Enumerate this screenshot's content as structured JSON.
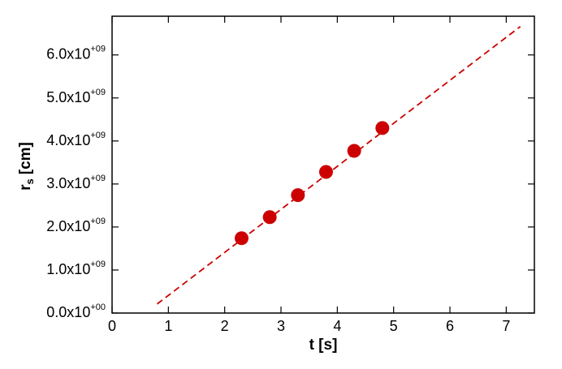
{
  "chart_data": {
    "type": "scatter",
    "x_label": "t [s]",
    "y_label": {
      "main": "r",
      "sub": "s",
      "unit": "[cm]"
    },
    "xlim": [
      0,
      7.5
    ],
    "xticks": [
      0,
      1,
      2,
      3,
      4,
      5,
      6,
      7
    ],
    "ylim": [
      0,
      6900000000
    ],
    "yticks": [
      {
        "value": 0,
        "label": "0.0x10",
        "exponent": "+00"
      },
      {
        "value": 1000000000,
        "label": "1.0x10",
        "exponent": "+09"
      },
      {
        "value": 2000000000,
        "label": "2.0x10",
        "exponent": "+09"
      },
      {
        "value": 3000000000,
        "label": "3.0x10",
        "exponent": "+09"
      },
      {
        "value": 4000000000,
        "label": "4.0x10",
        "exponent": "+09"
      },
      {
        "value": 5000000000,
        "label": "5.0x10",
        "exponent": "+09"
      },
      {
        "value": 6000000000,
        "label": "6.0x10",
        "exponent": "+09"
      }
    ],
    "points": {
      "color": "#cc0000",
      "x": [
        2.3,
        2.8,
        3.3,
        3.8,
        4.3,
        4.8
      ],
      "values": [
        1740000000,
        2230000000,
        2740000000,
        3280000000,
        3770000000,
        4300000000
      ]
    },
    "fit_line": {
      "color": "#cc0000",
      "dashed": true,
      "x": [
        0.8,
        7.25
      ],
      "values": [
        210000000,
        6660000000
      ]
    }
  }
}
